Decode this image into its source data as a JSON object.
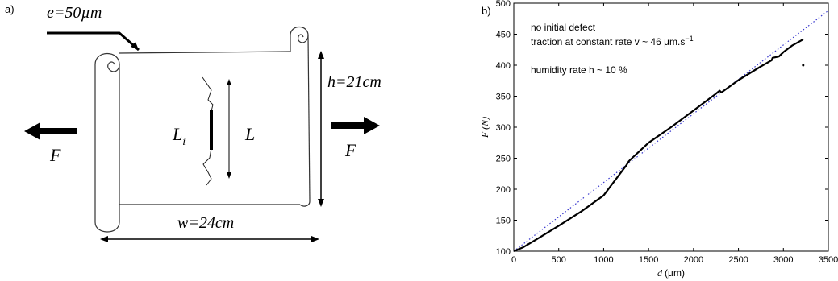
{
  "figure": {
    "panel_a_label": "a)",
    "panel_b_label": "b)"
  },
  "diagram": {
    "thickness_label": "e=50µm",
    "height_label": "h=21cm",
    "width_label": "w=24cm",
    "force_left_label": "F",
    "force_right_label": "F",
    "crack_length_label": "L",
    "initial_crack_label": "L",
    "initial_crack_subscript": "i"
  },
  "chart_data": {
    "type": "line",
    "xlabel_var": "d",
    "xlabel_unit": "(µm)",
    "ylabel_var": "F",
    "ylabel_unit": "(N)",
    "xlim": [
      0,
      3500
    ],
    "ylim": [
      100,
      500
    ],
    "xticks": [
      0,
      500,
      1000,
      1500,
      2000,
      2500,
      3000,
      3500
    ],
    "yticks": [
      100,
      150,
      200,
      250,
      300,
      350,
      400,
      450,
      500
    ],
    "annotations": {
      "line1": "no initial defect",
      "line2": "traction at constant rate   v ~ 46 µm.s",
      "line2_sup": "−1",
      "line3": "humidity rate h ~ 10 %"
    },
    "series": [
      {
        "style": "solid black, measured",
        "x": [
          0,
          100,
          250,
          500,
          750,
          1000,
          1250,
          1280,
          1300,
          1500,
          1750,
          2000,
          2250,
          2290,
          2310,
          2500,
          2750,
          2870,
          2880,
          2950,
          3000,
          3100,
          3200,
          3220
        ],
        "y": [
          100,
          106,
          119,
          141,
          164,
          190,
          238,
          245,
          248,
          275,
          300,
          327,
          354,
          359,
          356,
          376,
          398,
          408,
          412,
          414,
          421,
          432,
          440,
          442
        ]
      },
      {
        "style": "dotted blue, linear fit",
        "x": [
          0,
          3500
        ],
        "y": [
          100,
          488
        ]
      }
    ],
    "outlier_point": {
      "x": 3220,
      "y": 400
    }
  }
}
